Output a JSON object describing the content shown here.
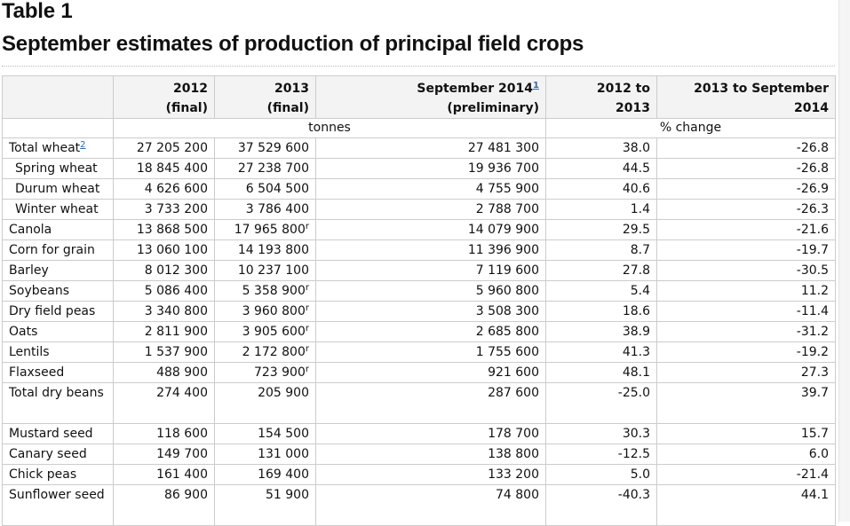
{
  "table_label": "Table 1",
  "title": "September estimates of production of principal field crops",
  "columns": {
    "c2012": [
      "2012",
      "(final)"
    ],
    "c2013": [
      "2013",
      "(final)"
    ],
    "c2014": [
      "September 2014",
      "(preliminary)"
    ],
    "c2014_footnote": "1",
    "ch1": [
      "2012 to",
      "2013"
    ],
    "ch2": [
      "2013 to September",
      "2014"
    ]
  },
  "units": {
    "tonnes": "tonnes",
    "pct": "% change"
  },
  "revised_mark": "r",
  "rows": [
    {
      "name": "Total wheat",
      "fn": "2",
      "sub": false,
      "v2012": "27 205 200",
      "v2013": "37 529 600",
      "r2013": false,
      "v2014": "27 481 300",
      "ch1": "38.0",
      "ch2": "-26.8"
    },
    {
      "name": "Spring wheat",
      "sub": true,
      "v2012": "18 845 400",
      "v2013": "27 238 700",
      "r2013": false,
      "v2014": "19 936 700",
      "ch1": "44.5",
      "ch2": "-26.8"
    },
    {
      "name": "Durum wheat",
      "sub": true,
      "v2012": "4 626 600",
      "v2013": "6 504 500",
      "r2013": false,
      "v2014": "4 755 900",
      "ch1": "40.6",
      "ch2": "-26.9"
    },
    {
      "name": "Winter wheat",
      "sub": true,
      "v2012": "3 733 200",
      "v2013": "3 786 400",
      "r2013": false,
      "v2014": "2 788 700",
      "ch1": "1.4",
      "ch2": "-26.3"
    },
    {
      "name": "Canola",
      "sub": false,
      "v2012": "13 868 500",
      "v2013": "17 965 800",
      "r2013": true,
      "v2014": "14 079 900",
      "ch1": "29.5",
      "ch2": "-21.6"
    },
    {
      "name": "Corn for grain",
      "sub": false,
      "v2012": "13 060 100",
      "v2013": "14 193 800",
      "r2013": false,
      "v2014": "11 396 900",
      "ch1": "8.7",
      "ch2": "-19.7"
    },
    {
      "name": "Barley",
      "sub": false,
      "v2012": "8 012 300",
      "v2013": "10 237 100",
      "r2013": false,
      "v2014": "7 119 600",
      "ch1": "27.8",
      "ch2": "-30.5"
    },
    {
      "name": "Soybeans",
      "sub": false,
      "v2012": "5 086 400",
      "v2013": "5 358 900",
      "r2013": true,
      "v2014": "5 960 800",
      "ch1": "5.4",
      "ch2": "11.2"
    },
    {
      "name": "Dry field peas",
      "sub": false,
      "v2012": "3 340 800",
      "v2013": "3 960 800",
      "r2013": true,
      "v2014": "3 508 300",
      "ch1": "18.6",
      "ch2": "-11.4"
    },
    {
      "name": "Oats",
      "sub": false,
      "v2012": "2 811 900",
      "v2013": "3 905 600",
      "r2013": true,
      "v2014": "2 685 800",
      "ch1": "38.9",
      "ch2": "-31.2"
    },
    {
      "name": "Lentils",
      "sub": false,
      "v2012": "1 537 900",
      "v2013": "2 172 800",
      "r2013": true,
      "v2014": "1 755 600",
      "ch1": "41.3",
      "ch2": "-19.2"
    },
    {
      "name": "Flaxseed",
      "sub": false,
      "v2012": "488 900",
      "v2013": "723 900",
      "r2013": true,
      "v2014": "921 600",
      "ch1": "48.1",
      "ch2": "27.3"
    },
    {
      "name": "Total dry beans",
      "sub": false,
      "tall": true,
      "v2012": "274 400",
      "v2013": "205 900",
      "r2013": false,
      "v2014": "287 600",
      "ch1": "-25.0",
      "ch2": "39.7"
    },
    {
      "name": "Mustard seed",
      "sub": false,
      "v2012": "118 600",
      "v2013": "154 500",
      "r2013": false,
      "v2014": "178 700",
      "ch1": "30.3",
      "ch2": "15.7"
    },
    {
      "name": "Canary seed",
      "sub": false,
      "v2012": "149 700",
      "v2013": "131 000",
      "r2013": false,
      "v2014": "138 800",
      "ch1": "-12.5",
      "ch2": "6.0"
    },
    {
      "name": "Chick peas",
      "sub": false,
      "v2012": "161 400",
      "v2013": "169 400",
      "r2013": false,
      "v2014": "133 200",
      "ch1": "5.0",
      "ch2": "-21.4"
    },
    {
      "name": "Sunflower seed",
      "sub": false,
      "tall": true,
      "v2012": "86 900",
      "v2013": "51 900",
      "r2013": false,
      "v2014": "74 800",
      "ch1": "-40.3",
      "ch2": "44.1"
    }
  ]
}
